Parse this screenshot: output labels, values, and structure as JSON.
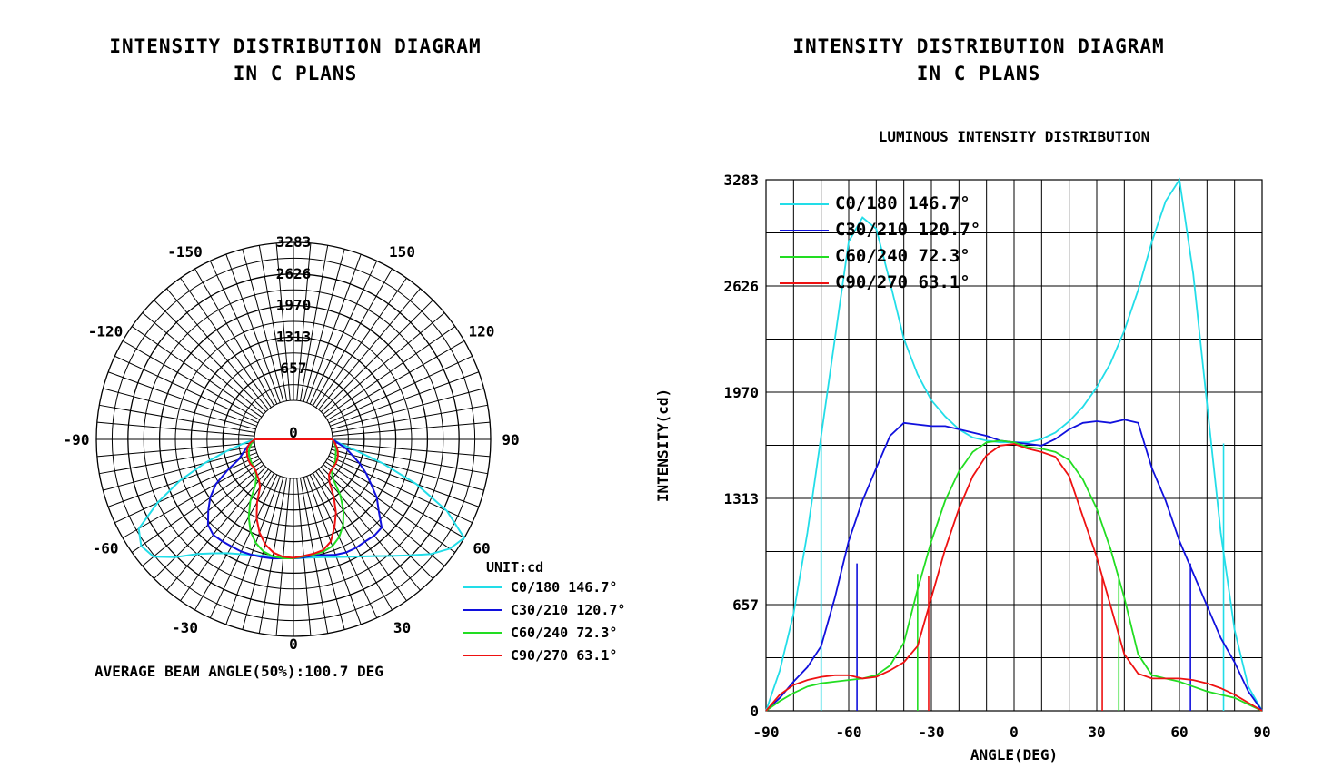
{
  "left_panel": {
    "title_line1": "INTENSITY DISTRIBUTION DIAGRAM",
    "title_line2": "IN C PLANS",
    "unit_label": "UNIT:cd",
    "beam_angle_text": "AVERAGE BEAM ANGLE(50%):100.7 DEG"
  },
  "right_panel": {
    "title_line1": "INTENSITY DISTRIBUTION DIAGRAM",
    "title_line2": "IN C PLANS"
  },
  "chart_data": [
    {
      "type": "polar",
      "title": "INTENSITY DISTRIBUTION DIAGRAM IN C PLANS",
      "unit": "UNIT:cd",
      "r_range": [
        0,
        3283
      ],
      "r_ticks": [
        "0",
        "657",
        "1313",
        "1970",
        "2626",
        "3283"
      ],
      "r_tick_values": [
        0,
        657,
        1313,
        1970,
        2626,
        3283
      ],
      "angle_ticks": [
        "0",
        "30",
        "60",
        "90",
        "120",
        "150",
        "-30",
        "-60",
        "-90",
        "-120",
        "-150"
      ],
      "angle_tick_values": [
        0,
        30,
        60,
        90,
        120,
        150,
        -30,
        -60,
        -90,
        -120,
        -150
      ],
      "grid": true,
      "legend_position": "bottom-right",
      "annotation": "AVERAGE BEAM ANGLE(50%):100.7 DEG",
      "series": [
        {
          "name": "C0/180 146.7°",
          "color": "#22dde8",
          "angles": [
            -90,
            -85,
            -80,
            -75,
            -70,
            -65,
            -60,
            -55,
            -50,
            -45,
            -40,
            -35,
            -30,
            -25,
            -20,
            -15,
            -10,
            -5,
            0,
            5,
            10,
            15,
            20,
            25,
            30,
            35,
            40,
            45,
            50,
            55,
            60,
            65,
            70,
            75,
            80,
            85,
            90
          ],
          "values": [
            0,
            250,
            600,
            1100,
            1700,
            2300,
            2900,
            3050,
            2980,
            2650,
            2300,
            2080,
            1920,
            1820,
            1740,
            1690,
            1670,
            1660,
            1660,
            1660,
            1680,
            1720,
            1790,
            1880,
            2000,
            2150,
            2350,
            2600,
            2900,
            3150,
            3283,
            2700,
            1900,
            1100,
            500,
            150,
            0
          ]
        },
        {
          "name": "C30/210 120.7°",
          "color": "#1010dd",
          "angles": [
            -90,
            -85,
            -80,
            -75,
            -70,
            -65,
            -60,
            -55,
            -50,
            -45,
            -40,
            -35,
            -30,
            -25,
            -20,
            -15,
            -10,
            -5,
            0,
            5,
            10,
            15,
            20,
            25,
            30,
            35,
            40,
            45,
            50,
            55,
            60,
            65,
            70,
            75,
            80,
            85,
            90
          ],
          "values": [
            0,
            80,
            180,
            270,
            400,
            700,
            1050,
            1300,
            1500,
            1700,
            1780,
            1770,
            1760,
            1760,
            1740,
            1720,
            1700,
            1670,
            1660,
            1650,
            1640,
            1680,
            1740,
            1780,
            1790,
            1780,
            1800,
            1780,
            1500,
            1300,
            1050,
            850,
            650,
            450,
            300,
            120,
            0
          ]
        },
        {
          "name": "C60/240 72.3°",
          "color": "#22dd22",
          "angles": [
            -90,
            -85,
            -80,
            -75,
            -70,
            -65,
            -60,
            -55,
            -50,
            -45,
            -40,
            -35,
            -30,
            -25,
            -20,
            -15,
            -10,
            -5,
            0,
            5,
            10,
            15,
            20,
            25,
            30,
            35,
            40,
            45,
            50,
            55,
            60,
            65,
            70,
            75,
            80,
            85,
            90
          ],
          "values": [
            0,
            60,
            110,
            150,
            170,
            180,
            190,
            200,
            220,
            280,
            420,
            750,
            1050,
            1300,
            1480,
            1600,
            1660,
            1670,
            1660,
            1630,
            1620,
            1600,
            1550,
            1430,
            1250,
            1000,
            700,
            350,
            220,
            200,
            180,
            150,
            120,
            100,
            80,
            40,
            0
          ]
        },
        {
          "name": "C90/270 63.1°",
          "color": "#ee1111",
          "angles": [
            -90,
            -85,
            -80,
            -75,
            -70,
            -65,
            -60,
            -55,
            -50,
            -45,
            -40,
            -35,
            -30,
            -25,
            -20,
            -15,
            -10,
            -5,
            0,
            5,
            10,
            15,
            20,
            25,
            30,
            35,
            40,
            45,
            50,
            55,
            60,
            65,
            70,
            75,
            80,
            85,
            90
          ],
          "values": [
            0,
            100,
            160,
            190,
            210,
            220,
            220,
            200,
            210,
            250,
            300,
            400,
            700,
            1000,
            1250,
            1450,
            1580,
            1640,
            1650,
            1620,
            1600,
            1570,
            1450,
            1200,
            950,
            650,
            350,
            230,
            200,
            200,
            200,
            190,
            170,
            140,
            100,
            50,
            0
          ]
        }
      ]
    },
    {
      "type": "line",
      "title": "LUMINOUS INTENSITY DISTRIBUTION",
      "xlabel": "ANGLE(DEG)",
      "ylabel": "INTENSITY(cd)",
      "xlim": [
        -90,
        90
      ],
      "ylim": [
        0,
        3283
      ],
      "x_ticks": [
        "-90",
        "-60",
        "-30",
        "0",
        "30",
        "60",
        "90"
      ],
      "x_tick_values": [
        -90,
        -60,
        -30,
        0,
        30,
        60,
        90
      ],
      "y_ticks": [
        "0",
        "657",
        "1313",
        "1970",
        "2626",
        "3283"
      ],
      "y_tick_values": [
        0,
        657,
        1313,
        1970,
        2626,
        3283
      ],
      "grid": true,
      "legend_position": "top-left",
      "series": [
        {
          "name": "C0/180 146.7°",
          "color": "#22dde8",
          "beam_half_angles": [
            -70,
            76
          ],
          "x": [
            -90,
            -85,
            -80,
            -75,
            -70,
            -65,
            -60,
            -55,
            -50,
            -45,
            -40,
            -35,
            -30,
            -25,
            -20,
            -15,
            -10,
            -5,
            0,
            5,
            10,
            15,
            20,
            25,
            30,
            35,
            40,
            45,
            50,
            55,
            60,
            65,
            70,
            75,
            80,
            85,
            90
          ],
          "y": [
            0,
            250,
            600,
            1100,
            1700,
            2300,
            2900,
            3050,
            2980,
            2650,
            2300,
            2080,
            1920,
            1820,
            1740,
            1690,
            1670,
            1660,
            1660,
            1660,
            1680,
            1720,
            1790,
            1880,
            2000,
            2150,
            2350,
            2600,
            2900,
            3150,
            3283,
            2700,
            1900,
            1100,
            500,
            150,
            0
          ]
        },
        {
          "name": "C30/210 120.7°",
          "color": "#1010dd",
          "beam_half_angles": [
            -57,
            64
          ],
          "x": [
            -90,
            -85,
            -80,
            -75,
            -70,
            -65,
            -60,
            -55,
            -50,
            -45,
            -40,
            -35,
            -30,
            -25,
            -20,
            -15,
            -10,
            -5,
            0,
            5,
            10,
            15,
            20,
            25,
            30,
            35,
            40,
            45,
            50,
            55,
            60,
            65,
            70,
            75,
            80,
            85,
            90
          ],
          "y": [
            0,
            80,
            180,
            270,
            400,
            700,
            1050,
            1300,
            1500,
            1700,
            1780,
            1770,
            1760,
            1760,
            1740,
            1720,
            1700,
            1670,
            1660,
            1650,
            1640,
            1680,
            1740,
            1780,
            1790,
            1780,
            1800,
            1780,
            1500,
            1300,
            1050,
            850,
            650,
            450,
            300,
            120,
            0
          ]
        },
        {
          "name": "C60/240 72.3°",
          "color": "#22dd22",
          "beam_half_angles": [
            -35,
            38
          ],
          "x": [
            -90,
            -85,
            -80,
            -75,
            -70,
            -65,
            -60,
            -55,
            -50,
            -45,
            -40,
            -35,
            -30,
            -25,
            -20,
            -15,
            -10,
            -5,
            0,
            5,
            10,
            15,
            20,
            25,
            30,
            35,
            40,
            45,
            50,
            55,
            60,
            65,
            70,
            75,
            80,
            85,
            90
          ],
          "y": [
            0,
            60,
            110,
            150,
            170,
            180,
            190,
            200,
            220,
            280,
            420,
            750,
            1050,
            1300,
            1480,
            1600,
            1660,
            1670,
            1660,
            1630,
            1620,
            1600,
            1550,
            1430,
            1250,
            1000,
            700,
            350,
            220,
            200,
            180,
            150,
            120,
            100,
            80,
            40,
            0
          ]
        },
        {
          "name": "C90/270 63.1°",
          "color": "#ee1111",
          "beam_half_angles": [
            -31,
            32
          ],
          "x": [
            -90,
            -85,
            -80,
            -75,
            -70,
            -65,
            -60,
            -55,
            -50,
            -45,
            -40,
            -35,
            -30,
            -25,
            -20,
            -15,
            -10,
            -5,
            0,
            5,
            10,
            15,
            20,
            25,
            30,
            35,
            40,
            45,
            50,
            55,
            60,
            65,
            70,
            75,
            80,
            85,
            90
          ],
          "y": [
            0,
            100,
            160,
            190,
            210,
            220,
            220,
            200,
            210,
            250,
            300,
            400,
            700,
            1000,
            1250,
            1450,
            1580,
            1640,
            1650,
            1620,
            1600,
            1570,
            1450,
            1200,
            950,
            650,
            350,
            230,
            200,
            200,
            200,
            190,
            170,
            140,
            100,
            50,
            0
          ]
        }
      ]
    }
  ]
}
